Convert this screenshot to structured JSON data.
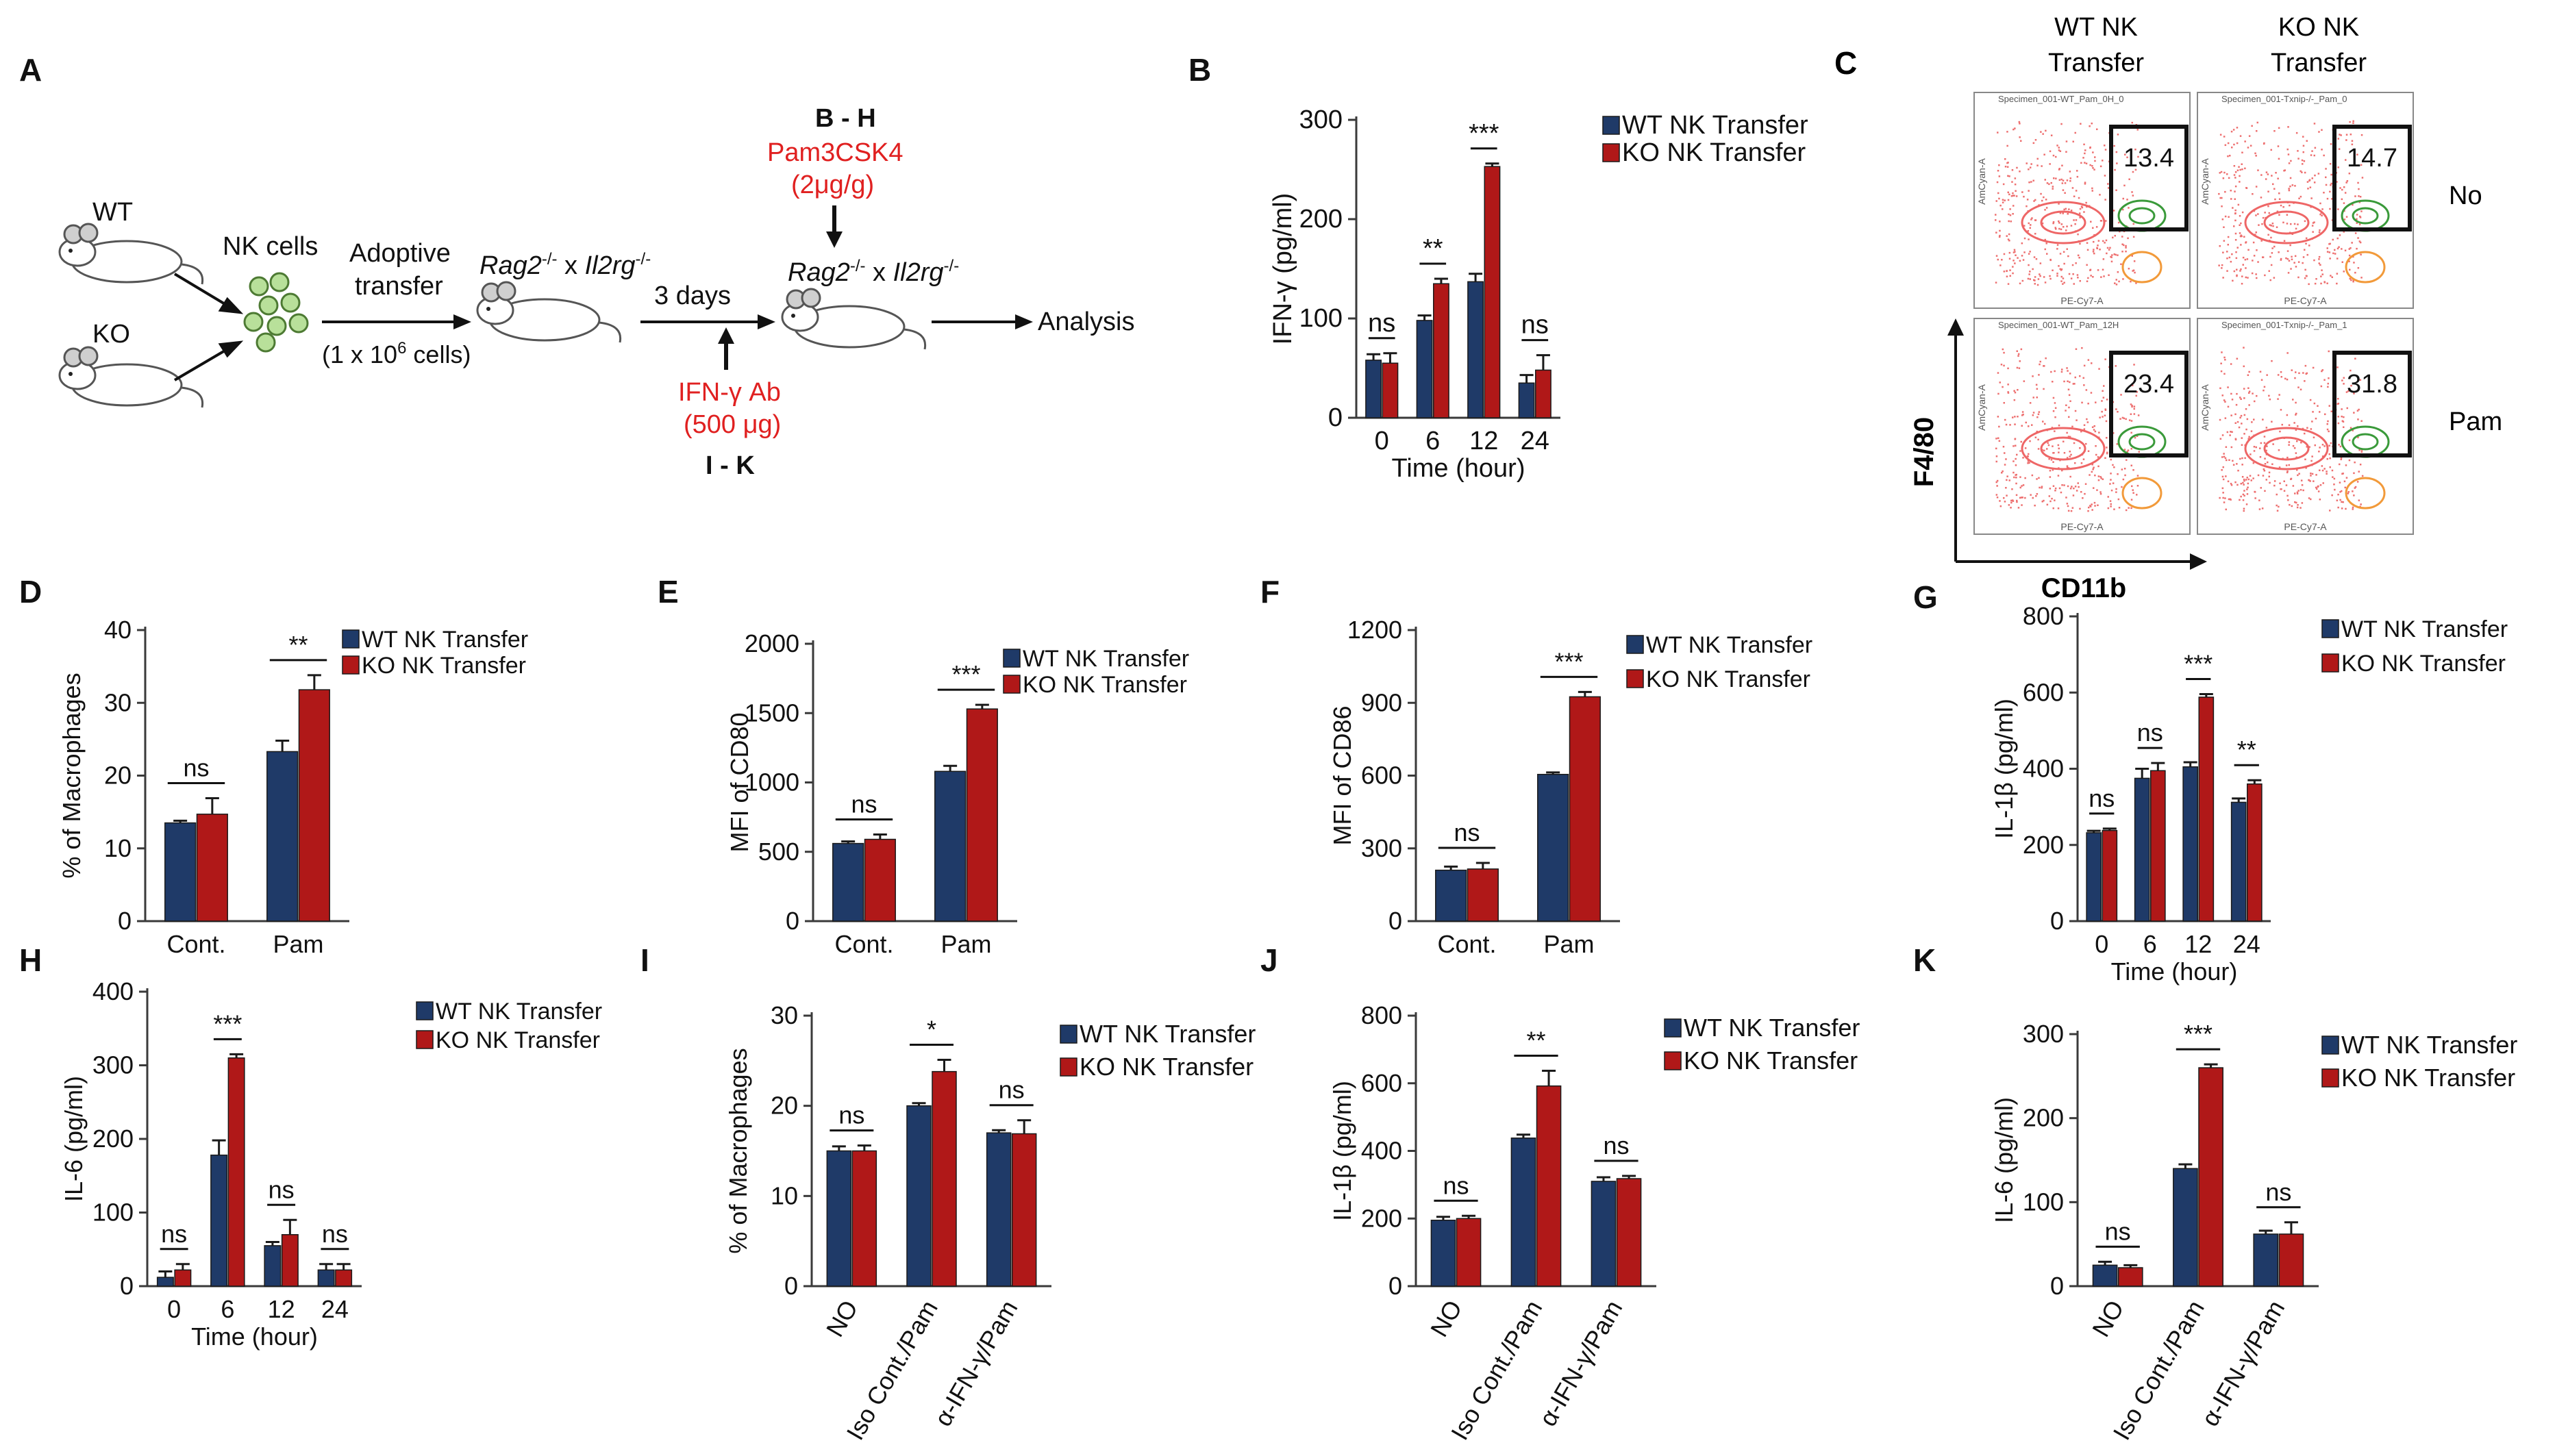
{
  "colors": {
    "wt": "#1f3a68",
    "ko": "#b01818",
    "axis": "#3a3a3a",
    "text": "#111111",
    "red_text": "#e02020"
  },
  "schematic": {
    "panel_letter": "A",
    "wt": "WT",
    "ko": "KO",
    "nk_cells": "NK cells",
    "adoptive": "Adoptive",
    "transfer": "transfer",
    "cells_pre": "(1 x 10",
    "cells_sup": "6",
    "cells_post": " cells)",
    "mouse_gene1": "Rag2",
    "mouse_sup1": "-/-",
    "mouse_x": " x ",
    "mouse_gene2": "Il2rg",
    "mouse_sup2": "-/-",
    "days": "3 days",
    "bh": "B - H",
    "pam": "Pam3CSK4",
    "pam_dose": "(2μg/g)",
    "ifn_ab": "IFN-γ Ab",
    "ifn_dose": "(500 μg)",
    "ik": "I - K",
    "analysis": "Analysis"
  },
  "flow": {
    "panel_letter": "C",
    "col_wt_line1": "WT NK",
    "col_wt_line2": "Transfer",
    "col_ko_line1": "KO NK",
    "col_ko_line2": "Transfer",
    "row_no": "No",
    "row_pam": "Pam",
    "y_axis": "F4/80",
    "x_axis": "CD11b",
    "gates": [
      "13.4",
      "14.7",
      "23.4",
      "31.8"
    ],
    "specimen_titles": [
      "Specimen_001-WT_Pam_0H_0",
      "Specimen_001-Txnip-/-_Pam_0",
      "Specimen_001-WT_Pam_12H",
      "Specimen_001-Txnip-/-_Pam_1"
    ],
    "facs_y": "AmCyan-A",
    "facs_x": "PE-Cy7-A"
  },
  "legend": {
    "wt": "WT NK Transfer",
    "ko": "KO NK Transfer"
  },
  "chart_data": [
    {
      "panel": "B",
      "type": "bar",
      "ylabel": "IFN-γ (pg/ml)",
      "xlabel": "Time (hour)",
      "categories": [
        "0",
        "6",
        "12",
        "24"
      ],
      "ylim": [
        0,
        300
      ],
      "yticks": [
        "0",
        "100",
        "200",
        "300"
      ],
      "series": [
        {
          "name": "WT NK Transfer",
          "values": [
            58,
            98,
            137,
            35
          ],
          "errors": [
            6,
            5,
            8,
            8
          ]
        },
        {
          "name": "KO NK Transfer",
          "values": [
            55,
            135,
            253,
            48
          ],
          "errors": [
            10,
            5,
            3,
            15
          ]
        }
      ],
      "significance": [
        "ns",
        "**",
        "***",
        "ns"
      ]
    },
    {
      "panel": "D",
      "type": "bar",
      "ylabel": "% of Macrophages",
      "xlabel": "",
      "categories": [
        "Cont.",
        "Pam"
      ],
      "ylim": [
        0,
        40
      ],
      "yticks": [
        "0",
        "10",
        "20",
        "30",
        "40"
      ],
      "series": [
        {
          "name": "WT NK Transfer",
          "values": [
            13.5,
            23.3
          ],
          "errors": [
            0.3,
            1.5
          ]
        },
        {
          "name": "KO NK Transfer",
          "values": [
            14.7,
            31.8
          ],
          "errors": [
            2.2,
            2.0
          ]
        }
      ],
      "significance": [
        "ns",
        "**"
      ]
    },
    {
      "panel": "E",
      "type": "bar",
      "ylabel": "MFI of CD80",
      "xlabel": "",
      "categories": [
        "Cont.",
        "Pam"
      ],
      "ylim": [
        0,
        2000
      ],
      "yticks": [
        "0",
        "500",
        "1000",
        "1500",
        "2000"
      ],
      "series": [
        {
          "name": "WT NK Transfer",
          "values": [
            560,
            1080
          ],
          "errors": [
            15,
            40
          ]
        },
        {
          "name": "KO NK Transfer",
          "values": [
            590,
            1530
          ],
          "errors": [
            35,
            30
          ]
        }
      ],
      "significance": [
        "ns",
        "***"
      ]
    },
    {
      "panel": "F",
      "type": "bar",
      "ylabel": "MFI of CD86",
      "xlabel": "",
      "categories": [
        "Cont.",
        "Pam"
      ],
      "ylim": [
        0,
        1200
      ],
      "yticks": [
        "0",
        "300",
        "600",
        "900",
        "1200"
      ],
      "series": [
        {
          "name": "WT NK Transfer",
          "values": [
            210,
            605
          ],
          "errors": [
            15,
            8
          ]
        },
        {
          "name": "KO NK Transfer",
          "values": [
            215,
            925
          ],
          "errors": [
            25,
            20
          ]
        }
      ],
      "significance": [
        "ns",
        "***"
      ]
    },
    {
      "panel": "G",
      "type": "bar",
      "ylabel": "IL-1β (pg/ml)",
      "xlabel": "Time (hour)",
      "categories": [
        "0",
        "6",
        "12",
        "24"
      ],
      "ylim": [
        0,
        800
      ],
      "yticks": [
        "0",
        "200",
        "400",
        "600",
        "800"
      ],
      "series": [
        {
          "name": "WT NK Transfer",
          "values": [
            232,
            375,
            405,
            312
          ],
          "errors": [
            5,
            25,
            12,
            10
          ]
        },
        {
          "name": "KO NK Transfer",
          "values": [
            238,
            395,
            588,
            360
          ],
          "errors": [
            5,
            20,
            8,
            10
          ]
        }
      ],
      "significance": [
        "ns",
        "ns",
        "***",
        "**"
      ]
    },
    {
      "panel": "H",
      "type": "bar",
      "ylabel": "IL-6 (pg/ml)",
      "xlabel": "Time (hour)",
      "categories": [
        "0",
        "6",
        "12",
        "24"
      ],
      "ylim": [
        0,
        400
      ],
      "yticks": [
        "0",
        "100",
        "200",
        "300",
        "400"
      ],
      "series": [
        {
          "name": "WT NK Transfer",
          "values": [
            12,
            178,
            55,
            22
          ],
          "errors": [
            8,
            20,
            5,
            8
          ]
        },
        {
          "name": "KO NK Transfer",
          "values": [
            22,
            310,
            70,
            22
          ],
          "errors": [
            8,
            5,
            20,
            8
          ]
        }
      ],
      "significance": [
        "ns",
        "***",
        "ns",
        "ns"
      ]
    },
    {
      "panel": "I",
      "type": "bar",
      "ylabel": "% of Macrophages",
      "xlabel": "",
      "categories": [
        "NO",
        "Iso Cont./Pam",
        "α-IFN-γ/Pam"
      ],
      "ylim": [
        0,
        30
      ],
      "yticks": [
        "0",
        "10",
        "20",
        "30"
      ],
      "series": [
        {
          "name": "WT NK Transfer",
          "values": [
            15.0,
            20.0,
            17.0
          ],
          "errors": [
            0.5,
            0.3,
            0.3
          ]
        },
        {
          "name": "KO NK Transfer",
          "values": [
            15.0,
            23.8,
            16.9
          ],
          "errors": [
            0.6,
            1.3,
            1.5
          ]
        }
      ],
      "significance": [
        "ns",
        "*",
        "ns"
      ]
    },
    {
      "panel": "J",
      "type": "bar",
      "ylabel": "IL-1β (pg/ml)",
      "xlabel": "",
      "categories": [
        "NO",
        "Iso Cont./Pam",
        "α-IFN-γ/Pam"
      ],
      "ylim": [
        0,
        800
      ],
      "yticks": [
        "0",
        "200",
        "400",
        "600",
        "800"
      ],
      "series": [
        {
          "name": "WT NK Transfer",
          "values": [
            195,
            438,
            310
          ],
          "errors": [
            10,
            10,
            12
          ]
        },
        {
          "name": "KO NK Transfer",
          "values": [
            200,
            592,
            318
          ],
          "errors": [
            8,
            45,
            8
          ]
        }
      ],
      "significance": [
        "ns",
        "**",
        "ns"
      ]
    },
    {
      "panel": "K",
      "type": "bar",
      "ylabel": "IL-6 (pg/ml)",
      "xlabel": "",
      "categories": [
        "NO",
        "Iso Cont./Pam",
        "α-IFN-γ/Pam"
      ],
      "ylim": [
        0,
        300
      ],
      "yticks": [
        "0",
        "100",
        "200",
        "300"
      ],
      "series": [
        {
          "name": "WT NK Transfer",
          "values": [
            25,
            140,
            62
          ],
          "errors": [
            4,
            5,
            4
          ]
        },
        {
          "name": "KO NK Transfer",
          "values": [
            22,
            260,
            62
          ],
          "errors": [
            3,
            4,
            14
          ]
        }
      ],
      "significance": [
        "ns",
        "***",
        "ns"
      ]
    }
  ]
}
